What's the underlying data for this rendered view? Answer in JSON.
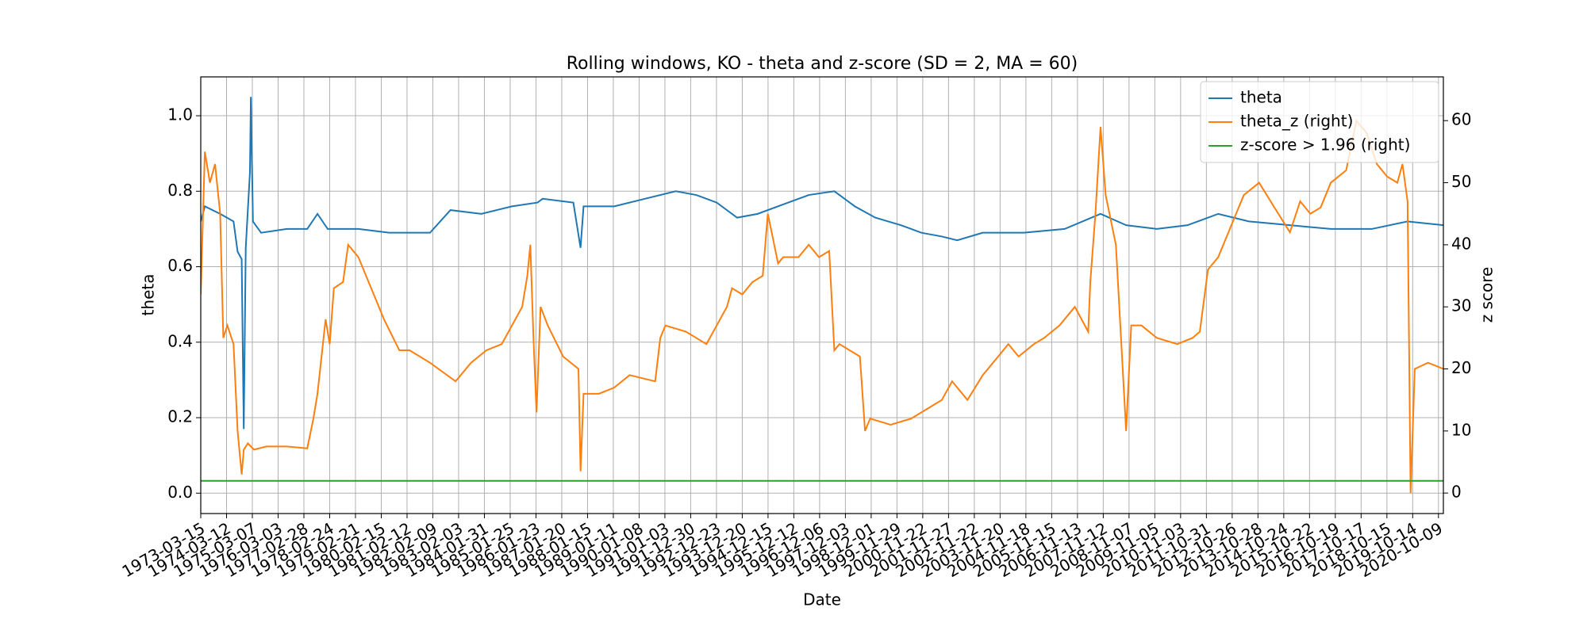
{
  "chart_data": {
    "type": "line",
    "title": "Rolling windows, KO - theta and z-score (SD = 2, MA = 60)",
    "x_label": "Date",
    "y_label": "theta",
    "y2_label": "z score",
    "grid": true,
    "legend": "upper right",
    "xlim": [
      0,
      11903
    ],
    "ylim": [
      -0.054,
      1.103
    ],
    "y2lim": [
      -3.3,
      67.05
    ],
    "xticks": [
      {
        "value": 0,
        "label": "1973-03-15"
      },
      {
        "value": 247,
        "label": "1974-03-12"
      },
      {
        "value": 494,
        "label": "1975-03-07"
      },
      {
        "value": 741,
        "label": "1976-03-03"
      },
      {
        "value": 988,
        "label": "1977-02-28"
      },
      {
        "value": 1235,
        "label": "1978-02-24"
      },
      {
        "value": 1482,
        "label": "1979-02-21"
      },
      {
        "value": 1729,
        "label": "1980-02-15"
      },
      {
        "value": 1976,
        "label": "1981-02-12"
      },
      {
        "value": 2223,
        "label": "1982-02-09"
      },
      {
        "value": 2470,
        "label": "1983-02-03"
      },
      {
        "value": 2717,
        "label": "1984-01-31"
      },
      {
        "value": 2964,
        "label": "1985-01-25"
      },
      {
        "value": 3211,
        "label": "1986-01-23"
      },
      {
        "value": 3458,
        "label": "1987-01-20"
      },
      {
        "value": 3705,
        "label": "1988-01-15"
      },
      {
        "value": 3952,
        "label": "1989-01-11"
      },
      {
        "value": 4199,
        "label": "1990-01-08"
      },
      {
        "value": 4446,
        "label": "1991-01-03"
      },
      {
        "value": 4693,
        "label": "1991-12-30"
      },
      {
        "value": 4940,
        "label": "1992-12-23"
      },
      {
        "value": 5187,
        "label": "1993-12-20"
      },
      {
        "value": 5434,
        "label": "1994-12-15"
      },
      {
        "value": 5681,
        "label": "1995-12-12"
      },
      {
        "value": 5928,
        "label": "1996-12-06"
      },
      {
        "value": 6175,
        "label": "1997-12-03"
      },
      {
        "value": 6422,
        "label": "1998-12-01"
      },
      {
        "value": 6669,
        "label": "1999-11-29"
      },
      {
        "value": 6916,
        "label": "2000-11-22"
      },
      {
        "value": 7163,
        "label": "2001-11-27"
      },
      {
        "value": 7410,
        "label": "2002-11-22"
      },
      {
        "value": 7657,
        "label": "2003-11-20"
      },
      {
        "value": 7904,
        "label": "2004-11-18"
      },
      {
        "value": 8151,
        "label": "2005-11-15"
      },
      {
        "value": 8398,
        "label": "2006-11-13"
      },
      {
        "value": 8645,
        "label": "2007-11-12"
      },
      {
        "value": 8892,
        "label": "2008-11-07"
      },
      {
        "value": 9139,
        "label": "2009-11-05"
      },
      {
        "value": 9386,
        "label": "2010-11-03"
      },
      {
        "value": 9633,
        "label": "2011-10-31"
      },
      {
        "value": 9880,
        "label": "2012-10-26"
      },
      {
        "value": 10127,
        "label": "2013-10-28"
      },
      {
        "value": 10374,
        "label": "2014-10-24"
      },
      {
        "value": 10621,
        "label": "2015-10-22"
      },
      {
        "value": 10868,
        "label": "2016-10-19"
      },
      {
        "value": 11115,
        "label": "2017-10-17"
      },
      {
        "value": 11362,
        "label": "2018-10-15"
      },
      {
        "value": 11609,
        "label": "2019-10-14"
      },
      {
        "value": 11856,
        "label": "2020-10-09"
      }
    ],
    "yticks": [
      {
        "value": 0,
        "label": "0.0"
      },
      {
        "value": 0.2,
        "label": "0.2"
      },
      {
        "value": 0.4,
        "label": "0.4"
      },
      {
        "value": 0.6,
        "label": "0.6"
      },
      {
        "value": 0.8,
        "label": "0.8"
      },
      {
        "value": 1,
        "label": "1.0"
      }
    ],
    "y2ticks": [
      0,
      10,
      20,
      30,
      40,
      50,
      60
    ],
    "series": [
      {
        "name": "theta",
        "color": "#1f77b4",
        "x": [
          0,
          39,
          186,
          314,
          353,
          392,
          412,
          431,
          471,
          480,
          500,
          578,
          824,
          1020,
          1118,
          1216,
          1510,
          1804,
          2196,
          2392,
          2687,
          2981,
          3226,
          3275,
          3569,
          3638,
          3667,
          3961,
          4255,
          4550,
          4746,
          4942,
          5138,
          5334,
          5628,
          5824,
          6069,
          6265,
          6461,
          6707,
          6903,
          7099,
          7246,
          7491,
          7884,
          8275,
          8619,
          8864,
          9158,
          9452,
          9746,
          10040,
          10433,
          10825,
          11217,
          11560,
          11903
        ],
        "values": [
          0.72,
          0.76,
          0.74,
          0.72,
          0.64,
          0.62,
          0.17,
          0.65,
          0.85,
          1.05,
          0.72,
          0.69,
          0.7,
          0.7,
          0.74,
          0.7,
          0.7,
          0.69,
          0.69,
          0.75,
          0.74,
          0.76,
          0.77,
          0.78,
          0.77,
          0.65,
          0.76,
          0.76,
          0.78,
          0.8,
          0.79,
          0.77,
          0.73,
          0.74,
          0.77,
          0.79,
          0.8,
          0.76,
          0.73,
          0.71,
          0.69,
          0.68,
          0.67,
          0.69,
          0.69,
          0.7,
          0.74,
          0.71,
          0.7,
          0.71,
          0.74,
          0.72,
          0.71,
          0.7,
          0.7,
          0.72,
          0.71
        ]
      },
      {
        "name": "theta_z (right)",
        "color": "#ff7f0e",
        "axis": "y2",
        "x": [
          0,
          39,
          88,
          137,
          186,
          216,
          255,
          314,
          353,
          392,
          412,
          451,
          510,
          628,
          824,
          1020,
          1079,
          1118,
          1196,
          1235,
          1275,
          1363,
          1412,
          1510,
          1657,
          1755,
          1902,
          2000,
          2196,
          2441,
          2589,
          2736,
          2883,
          2981,
          3079,
          3128,
          3157,
          3187,
          3216,
          3255,
          3324,
          3471,
          3618,
          3638,
          3667,
          3814,
          3961,
          4108,
          4353,
          4402,
          4451,
          4648,
          4844,
          4942,
          5040,
          5089,
          5187,
          5285,
          5383,
          5432,
          5530,
          5579,
          5726,
          5824,
          5922,
          6020,
          6069,
          6118,
          6314,
          6363,
          6412,
          6608,
          6805,
          7001,
          7099,
          7197,
          7344,
          7491,
          7638,
          7736,
          7834,
          7981,
          8079,
          8226,
          8373,
          8501,
          8521,
          8570,
          8619,
          8668,
          8766,
          8864,
          8913,
          9011,
          9158,
          9354,
          9501,
          9570,
          9648,
          9746,
          9844,
          9991,
          10138,
          10285,
          10433,
          10531,
          10629,
          10727,
          10825,
          10972,
          11070,
          11168,
          11266,
          11364,
          11462,
          11511,
          11560,
          11589,
          11629,
          11756,
          11903
        ],
        "values": [
          32,
          55,
          50,
          53,
          45,
          25,
          27,
          24,
          10,
          3,
          7,
          8,
          7,
          7.5,
          7.5,
          7.2,
          12,
          16,
          28,
          24,
          33,
          34,
          40,
          38,
          32,
          28,
          23,
          23,
          21,
          18,
          21,
          23,
          24,
          27,
          30,
          35,
          40,
          25,
          13,
          30,
          27,
          22,
          20,
          3.5,
          16,
          16,
          17,
          19,
          18,
          25,
          27,
          26,
          24,
          27,
          30,
          33,
          32,
          34,
          35,
          45,
          37,
          38,
          38,
          40,
          38,
          39,
          23,
          24,
          22,
          10,
          12,
          11,
          12,
          14,
          15,
          18,
          15,
          19,
          22,
          24,
          22,
          24,
          25,
          27,
          30,
          26,
          34,
          45,
          59,
          48,
          40,
          10,
          27,
          27,
          25,
          24,
          25,
          26,
          36,
          38,
          42,
          48,
          50,
          46,
          42,
          47,
          45,
          46,
          50,
          52,
          60,
          58,
          53,
          51,
          50,
          53,
          47,
          0,
          20,
          21,
          20
        ]
      },
      {
        "name": "z-score > 1.96 (right)",
        "color": "#2ca02c",
        "axis": "y2",
        "x": [
          0,
          11903
        ],
        "values": [
          1.96,
          1.96
        ]
      }
    ]
  }
}
